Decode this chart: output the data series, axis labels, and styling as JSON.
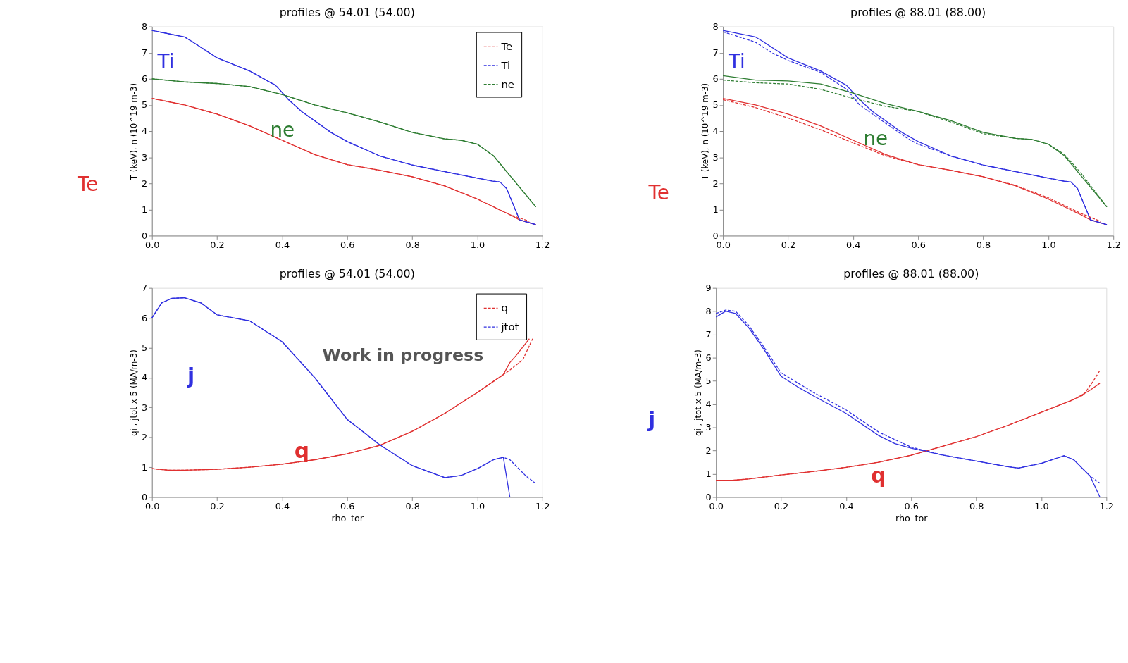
{
  "chart_data": [
    {
      "type": "line",
      "title": "profiles @ 54.01 (54.00)",
      "ylabel": "T (keV), n (10^19 m-3)",
      "xlim": [
        0,
        1.2
      ],
      "xticks": [
        {
          "value": 0,
          "label": "0.0"
        },
        {
          "value": 0.2,
          "label": "0.2"
        },
        {
          "value": 0.4,
          "label": "0.4"
        },
        {
          "value": 0.6,
          "label": "0.6"
        },
        {
          "value": 0.8,
          "label": "0.8"
        },
        {
          "value": 1,
          "label": "1.0"
        },
        {
          "value": 1.2,
          "label": "1.2"
        }
      ],
      "ylim": [
        0,
        8
      ],
      "yticks": [
        0,
        1,
        2,
        3,
        4,
        5,
        6,
        7,
        8
      ],
      "grid": false,
      "legend": "top right",
      "annotations": [
        "Ti",
        "ne",
        "Te"
      ],
      "series": [
        {
          "color": "#e03030",
          "line_style": "solid",
          "x": [
            0,
            0.1,
            0.2,
            0.3,
            0.4,
            0.5,
            0.6,
            0.7,
            0.8,
            0.9,
            1.0,
            1.1,
            1.13,
            1.18
          ],
          "values": [
            5.25,
            5.0,
            4.65,
            4.2,
            3.65,
            3.1,
            2.72,
            2.5,
            2.25,
            1.9,
            1.4,
            0.8,
            0.6,
            0.42
          ]
        },
        {
          "color": "#3030e0",
          "line_style": "solid",
          "x": [
            0,
            0.1,
            0.12,
            0.2,
            0.3,
            0.38,
            0.42,
            0.46,
            0.55,
            0.6,
            0.7,
            0.8,
            0.9,
            1.0,
            1.05,
            1.07,
            1.09,
            1.13,
            1.18
          ],
          "values": [
            7.85,
            7.6,
            7.45,
            6.8,
            6.3,
            5.75,
            5.2,
            4.75,
            3.95,
            3.6,
            3.05,
            2.7,
            2.45,
            2.2,
            2.08,
            2.05,
            1.8,
            0.6,
            0.42
          ]
        },
        {
          "color": "#2e7d32",
          "line_style": "solid",
          "x": [
            0,
            0.1,
            0.2,
            0.3,
            0.4,
            0.5,
            0.6,
            0.7,
            0.8,
            0.9,
            0.95,
            1.0,
            1.05,
            1.1,
            1.18
          ],
          "values": [
            6.0,
            5.88,
            5.82,
            5.7,
            5.4,
            5.0,
            4.7,
            4.35,
            3.95,
            3.7,
            3.65,
            3.5,
            3.05,
            2.3,
            1.1
          ]
        },
        {
          "name": "Te",
          "color": "#e03030",
          "line_style": "dashed",
          "x": [
            0,
            0.1,
            0.2,
            0.3,
            0.4,
            0.5,
            0.6,
            0.7,
            0.8,
            0.9,
            1.0,
            1.1,
            1.16
          ],
          "values": [
            5.25,
            5.0,
            4.65,
            4.2,
            3.65,
            3.1,
            2.72,
            2.5,
            2.25,
            1.9,
            1.4,
            0.8,
            0.55
          ]
        },
        {
          "name": "Ti",
          "color": "#3030e0",
          "line_style": "dashed",
          "x": [
            0,
            0.1,
            0.12,
            0.2,
            0.3,
            0.38,
            0.42,
            0.46,
            0.55,
            0.6,
            0.7,
            0.8,
            0.9,
            1.0,
            1.05,
            1.07,
            1.09,
            1.13,
            1.18
          ],
          "values": [
            7.85,
            7.6,
            7.45,
            6.8,
            6.3,
            5.75,
            5.2,
            4.75,
            3.95,
            3.6,
            3.05,
            2.7,
            2.45,
            2.2,
            2.08,
            2.05,
            1.8,
            0.6,
            0.42
          ]
        },
        {
          "name": "ne",
          "color": "#2e7d32",
          "line_style": "dashed",
          "x": [
            0,
            0.1,
            0.2,
            0.3,
            0.4,
            0.5,
            0.6,
            0.7,
            0.8,
            0.9,
            0.95,
            1.0,
            1.05,
            1.1,
            1.18
          ],
          "values": [
            6.0,
            5.88,
            5.82,
            5.7,
            5.4,
            5.0,
            4.7,
            4.35,
            3.95,
            3.7,
            3.65,
            3.5,
            3.05,
            2.3,
            1.1
          ]
        }
      ]
    },
    {
      "type": "line",
      "title": "profiles @ 88.01 (88.00)",
      "ylabel": "T (keV), n (10^19 m-3)",
      "xlim": [
        0,
        1.2
      ],
      "xticks": [
        {
          "value": 0,
          "label": "0.0"
        },
        {
          "value": 0.2,
          "label": "0.2"
        },
        {
          "value": 0.4,
          "label": "0.4"
        },
        {
          "value": 0.6,
          "label": "0.6"
        },
        {
          "value": 0.8,
          "label": "0.8"
        },
        {
          "value": 1,
          "label": "1.0"
        },
        {
          "value": 1.2,
          "label": "1.2"
        }
      ],
      "ylim": [
        0,
        8
      ],
      "yticks": [
        0,
        1,
        2,
        3,
        4,
        5,
        6,
        7,
        8
      ],
      "grid": false,
      "annotations": [
        "Ti",
        "ne",
        "Te"
      ],
      "series": [
        {
          "color": "#e03030",
          "line_style": "solid",
          "x": [
            0,
            0.1,
            0.2,
            0.3,
            0.4,
            0.5,
            0.6,
            0.7,
            0.8,
            0.9,
            1.0,
            1.1,
            1.13,
            1.18
          ],
          "values": [
            5.25,
            5.0,
            4.65,
            4.2,
            3.65,
            3.1,
            2.72,
            2.5,
            2.25,
            1.9,
            1.4,
            0.8,
            0.6,
            0.42
          ]
        },
        {
          "color": "#3030e0",
          "line_style": "solid",
          "x": [
            0,
            0.1,
            0.12,
            0.2,
            0.3,
            0.38,
            0.42,
            0.46,
            0.55,
            0.6,
            0.7,
            0.8,
            0.9,
            1.0,
            1.05,
            1.07,
            1.09,
            1.13,
            1.18
          ],
          "values": [
            7.85,
            7.6,
            7.45,
            6.8,
            6.3,
            5.75,
            5.2,
            4.75,
            3.95,
            3.6,
            3.05,
            2.7,
            2.45,
            2.2,
            2.08,
            2.05,
            1.8,
            0.6,
            0.42
          ]
        },
        {
          "color": "#2e7d32",
          "line_style": "solid",
          "x": [
            0,
            0.1,
            0.2,
            0.3,
            0.4,
            0.5,
            0.6,
            0.7,
            0.8,
            0.9,
            0.95,
            1.0,
            1.05,
            1.1,
            1.18
          ],
          "values": [
            6.12,
            5.95,
            5.92,
            5.8,
            5.45,
            5.05,
            4.75,
            4.4,
            3.95,
            3.72,
            3.68,
            3.5,
            3.05,
            2.3,
            1.1
          ]
        },
        {
          "color": "#e03030",
          "line_style": "dashed",
          "x": [
            0,
            0.1,
            0.2,
            0.3,
            0.4,
            0.5,
            0.6,
            0.7,
            0.8,
            0.9,
            1.0,
            1.1,
            1.16
          ],
          "values": [
            5.2,
            4.9,
            4.5,
            4.05,
            3.55,
            3.05,
            2.72,
            2.5,
            2.25,
            1.92,
            1.45,
            0.85,
            0.55
          ]
        },
        {
          "color": "#3030e0",
          "line_style": "dashed",
          "x": [
            0,
            0.1,
            0.15,
            0.2,
            0.3,
            0.38,
            0.42,
            0.5,
            0.57,
            0.6,
            0.7,
            0.8,
            0.9,
            1.0,
            1.05,
            1.07,
            1.09,
            1.13,
            1.18
          ],
          "values": [
            7.8,
            7.4,
            7.0,
            6.7,
            6.25,
            5.6,
            5.0,
            4.3,
            3.7,
            3.5,
            3.05,
            2.7,
            2.45,
            2.2,
            2.08,
            2.05,
            1.8,
            0.6,
            0.42
          ]
        },
        {
          "color": "#2e7d32",
          "line_style": "dashed",
          "x": [
            0,
            0.1,
            0.2,
            0.3,
            0.4,
            0.5,
            0.6,
            0.7,
            0.8,
            0.9,
            0.95,
            1.0,
            1.05,
            1.1,
            1.18
          ],
          "values": [
            5.95,
            5.85,
            5.8,
            5.6,
            5.25,
            4.95,
            4.75,
            4.35,
            3.9,
            3.72,
            3.68,
            3.5,
            3.1,
            2.4,
            1.1
          ]
        }
      ]
    },
    {
      "type": "line",
      "title": "profiles @ 54.01 (54.00)",
      "xlabel": "rho_tor",
      "ylabel": "qi ,  jtot x 5 (MA/m-3)",
      "xlim": [
        0,
        1.2
      ],
      "xticks": [
        {
          "value": 0,
          "label": "0.0"
        },
        {
          "value": 0.2,
          "label": "0.2"
        },
        {
          "value": 0.4,
          "label": "0.4"
        },
        {
          "value": 0.6,
          "label": "0.6"
        },
        {
          "value": 0.8,
          "label": "0.8"
        },
        {
          "value": 1,
          "label": "1.0"
        },
        {
          "value": 1.2,
          "label": "1.2"
        }
      ],
      "ylim": [
        0,
        7
      ],
      "yticks": [
        0,
        1,
        2,
        3,
        4,
        5,
        6,
        7
      ],
      "grid": false,
      "legend": "top right",
      "annotations": [
        "j",
        "q",
        "Work in progress"
      ],
      "series": [
        {
          "color": "#e03030",
          "line_style": "solid",
          "x": [
            0,
            0.05,
            0.1,
            0.2,
            0.3,
            0.4,
            0.5,
            0.6,
            0.7,
            0.8,
            0.9,
            1.0,
            1.08,
            1.1,
            1.12,
            1.16
          ],
          "values": [
            0.95,
            0.9,
            0.9,
            0.93,
            1.0,
            1.1,
            1.25,
            1.45,
            1.73,
            2.2,
            2.8,
            3.5,
            4.1,
            4.5,
            4.75,
            5.3
          ]
        },
        {
          "color": "#3030e0",
          "line_style": "solid",
          "x": [
            0,
            0.03,
            0.06,
            0.1,
            0.15,
            0.2,
            0.25,
            0.3,
            0.4,
            0.5,
            0.6,
            0.7,
            0.8,
            0.9,
            0.95,
            1.0,
            1.05,
            1.08,
            1.1
          ],
          "values": [
            6.0,
            6.5,
            6.65,
            6.67,
            6.5,
            6.1,
            6.0,
            5.9,
            5.2,
            4.0,
            2.6,
            1.75,
            1.05,
            0.65,
            0.72,
            0.95,
            1.25,
            1.33,
            0.0
          ]
        },
        {
          "name": "q",
          "color": "#e03030",
          "line_style": "dashed",
          "x": [
            0,
            0.05,
            0.1,
            0.2,
            0.3,
            0.4,
            0.5,
            0.6,
            0.7,
            0.8,
            0.9,
            1.0,
            1.08,
            1.1,
            1.14,
            1.17
          ],
          "values": [
            0.95,
            0.9,
            0.9,
            0.93,
            1.0,
            1.1,
            1.25,
            1.45,
            1.73,
            2.2,
            2.8,
            3.5,
            4.1,
            4.25,
            4.6,
            5.3
          ]
        },
        {
          "name": "jtot",
          "color": "#3030e0",
          "line_style": "dashed",
          "x": [
            0,
            0.03,
            0.06,
            0.1,
            0.15,
            0.2,
            0.25,
            0.3,
            0.4,
            0.5,
            0.6,
            0.7,
            0.8,
            0.9,
            0.95,
            1.0,
            1.05,
            1.08,
            1.1,
            1.15,
            1.18
          ],
          "values": [
            6.0,
            6.5,
            6.65,
            6.67,
            6.5,
            6.1,
            6.0,
            5.9,
            5.2,
            4.0,
            2.6,
            1.75,
            1.05,
            0.65,
            0.72,
            0.95,
            1.25,
            1.33,
            1.25,
            0.7,
            0.45
          ]
        }
      ]
    },
    {
      "type": "line",
      "title": "profiles @ 88.01 (88.00)",
      "xlabel": "rho_tor",
      "ylabel": "qi ,  jtot x 5 (MA/m-3)",
      "xlim": [
        0,
        1.2
      ],
      "xticks": [
        {
          "value": 0,
          "label": "0.0"
        },
        {
          "value": 0.2,
          "label": "0.2"
        },
        {
          "value": 0.4,
          "label": "0.4"
        },
        {
          "value": 0.6,
          "label": "0.6"
        },
        {
          "value": 0.8,
          "label": "0.8"
        },
        {
          "value": 1,
          "label": "1.0"
        },
        {
          "value": 1.2,
          "label": "1.2"
        }
      ],
      "ylim": [
        0,
        9
      ],
      "yticks": [
        0,
        1,
        2,
        3,
        4,
        5,
        6,
        7,
        8,
        9
      ],
      "grid": false,
      "annotations": [
        "j",
        "q"
      ],
      "series": [
        {
          "color": "#e03030",
          "line_style": "solid",
          "x": [
            0,
            0.05,
            0.1,
            0.2,
            0.3,
            0.4,
            0.5,
            0.6,
            0.7,
            0.8,
            0.9,
            1.0,
            1.1,
            1.15,
            1.18
          ],
          "values": [
            0.72,
            0.72,
            0.78,
            0.95,
            1.1,
            1.28,
            1.5,
            1.8,
            2.2,
            2.6,
            3.1,
            3.65,
            4.2,
            4.6,
            4.9
          ]
        },
        {
          "color": "#3030e0",
          "line_style": "solid",
          "x": [
            0,
            0.03,
            0.06,
            0.1,
            0.15,
            0.2,
            0.25,
            0.3,
            0.4,
            0.5,
            0.55,
            0.6,
            0.7,
            0.8,
            0.9,
            0.93,
            1.0,
            1.07,
            1.1,
            1.15,
            1.18
          ],
          "values": [
            7.75,
            8.0,
            7.9,
            7.3,
            6.3,
            5.2,
            4.75,
            4.35,
            3.6,
            2.65,
            2.3,
            2.1,
            1.8,
            1.55,
            1.3,
            1.25,
            1.45,
            1.78,
            1.6,
            0.9,
            0.0
          ]
        },
        {
          "color": "#e03030",
          "line_style": "dashed",
          "x": [
            0,
            0.05,
            0.1,
            0.2,
            0.3,
            0.4,
            0.5,
            0.6,
            0.7,
            0.8,
            0.9,
            1.0,
            1.1,
            1.13,
            1.16,
            1.18
          ],
          "values": [
            0.72,
            0.72,
            0.78,
            0.95,
            1.1,
            1.28,
            1.5,
            1.8,
            2.2,
            2.6,
            3.1,
            3.65,
            4.2,
            4.4,
            5.0,
            5.45
          ]
        },
        {
          "color": "#3030e0",
          "line_style": "dashed",
          "x": [
            0,
            0.03,
            0.06,
            0.1,
            0.15,
            0.2,
            0.3,
            0.4,
            0.5,
            0.6,
            0.7,
            0.8,
            0.9,
            0.93,
            1.0,
            1.07,
            1.1,
            1.15,
            1.18
          ],
          "values": [
            7.9,
            8.05,
            8.0,
            7.4,
            6.4,
            5.35,
            4.5,
            3.75,
            2.8,
            2.15,
            1.8,
            1.55,
            1.3,
            1.25,
            1.45,
            1.78,
            1.6,
            0.9,
            0.6
          ]
        }
      ]
    }
  ]
}
